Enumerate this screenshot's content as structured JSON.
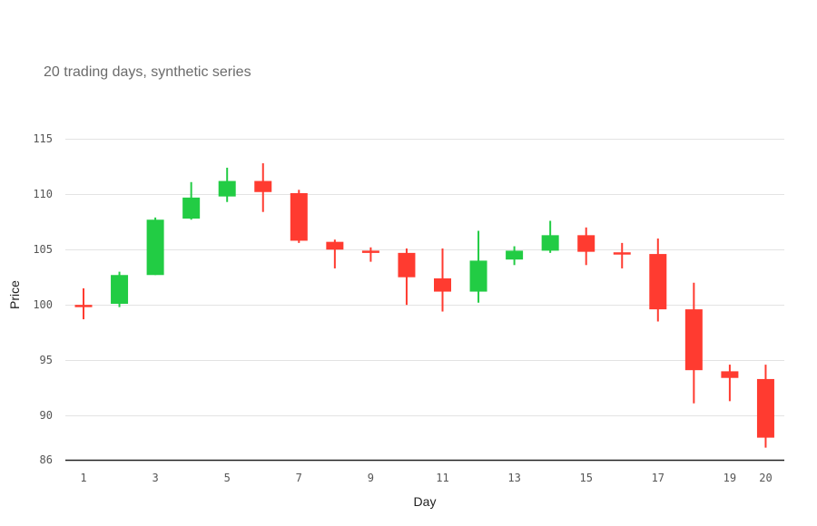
{
  "chart_data": {
    "type": "candlestick",
    "subtitle": "20 trading days, synthetic series",
    "xlabel": "Day",
    "ylabel": "Price",
    "ylim": [
      86,
      116
    ],
    "yticks": [
      86,
      90,
      95,
      100,
      105,
      110,
      115
    ],
    "xticks": [
      1,
      3,
      5,
      7,
      9,
      11,
      13,
      15,
      17,
      19,
      20
    ],
    "grid": true,
    "colors": {
      "up": "#22cc44",
      "down": "#ff3b30"
    },
    "candles": [
      {
        "day": 1,
        "open": 100.0,
        "high": 101.5,
        "low": 98.7,
        "close": 99.8
      },
      {
        "day": 2,
        "open": 100.1,
        "high": 103.0,
        "low": 99.8,
        "close": 102.7
      },
      {
        "day": 3,
        "open": 102.7,
        "high": 107.9,
        "low": 102.7,
        "close": 107.7
      },
      {
        "day": 4,
        "open": 107.8,
        "high": 111.1,
        "low": 107.7,
        "close": 109.7
      },
      {
        "day": 5,
        "open": 109.8,
        "high": 112.4,
        "low": 109.3,
        "close": 111.2
      },
      {
        "day": 6,
        "open": 111.2,
        "high": 112.8,
        "low": 108.4,
        "close": 110.2
      },
      {
        "day": 7,
        "open": 110.1,
        "high": 110.4,
        "low": 105.6,
        "close": 105.8
      },
      {
        "day": 8,
        "open": 105.7,
        "high": 105.9,
        "low": 103.3,
        "close": 105.0
      },
      {
        "day": 9,
        "open": 104.9,
        "high": 105.2,
        "low": 103.9,
        "close": 104.7
      },
      {
        "day": 10,
        "open": 104.7,
        "high": 105.1,
        "low": 100.0,
        "close": 102.5
      },
      {
        "day": 11,
        "open": 102.4,
        "high": 105.1,
        "low": 99.4,
        "close": 101.2
      },
      {
        "day": 12,
        "open": 101.2,
        "high": 106.7,
        "low": 100.2,
        "close": 104.0
      },
      {
        "day": 13,
        "open": 104.1,
        "high": 105.3,
        "low": 103.6,
        "close": 104.9
      },
      {
        "day": 14,
        "open": 104.9,
        "high": 107.6,
        "low": 104.7,
        "close": 106.3
      },
      {
        "day": 15,
        "open": 106.3,
        "high": 107.0,
        "low": 103.6,
        "close": 104.8
      },
      {
        "day": 16,
        "open": 104.7,
        "high": 105.6,
        "low": 103.3,
        "close": 104.6
      },
      {
        "day": 17,
        "open": 104.6,
        "high": 106.0,
        "low": 98.5,
        "close": 99.6
      },
      {
        "day": 18,
        "open": 99.6,
        "high": 102.0,
        "low": 91.1,
        "close": 94.1
      },
      {
        "day": 19,
        "open": 94.0,
        "high": 94.6,
        "low": 91.3,
        "close": 93.4
      },
      {
        "day": 20,
        "open": 93.3,
        "high": 94.6,
        "low": 87.1,
        "close": 88.0
      }
    ]
  }
}
